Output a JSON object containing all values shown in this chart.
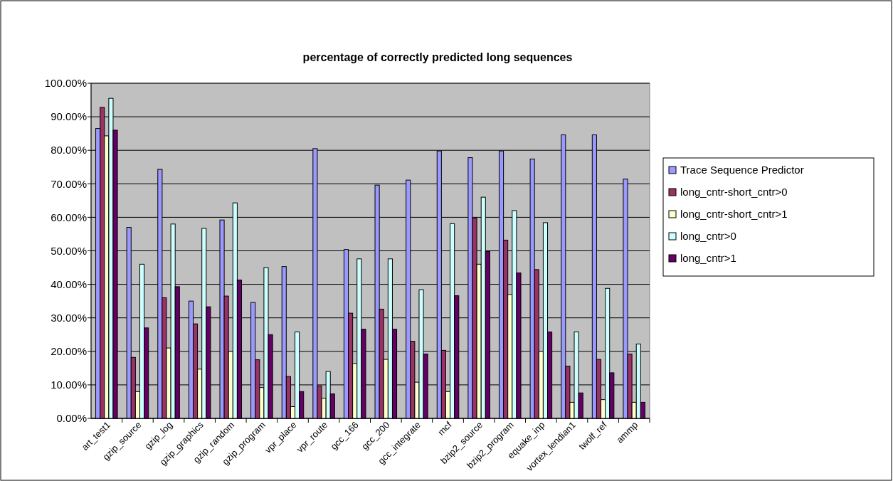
{
  "chart_data": {
    "type": "bar",
    "title": "percentage of correctly predicted long sequences",
    "categories": [
      "art_test1",
      "gzip_source",
      "gzip_log",
      "gzip_graphics",
      "gzip_random",
      "gzip_program",
      "vpr_place",
      "vpr_route",
      "gcc_166",
      "gcc_200",
      "gcc_integrate",
      "mcf",
      "bzip2_source",
      "bzip2_program",
      "equake_inp",
      "vortex_lendian1",
      "twolf_ref",
      "ammp"
    ],
    "series": [
      {
        "name": "Trace Sequence Predictor",
        "color": "#9999ff",
        "values": [
          86.5,
          57,
          74.3,
          35,
          59.2,
          34.6,
          45.3,
          80.5,
          50.4,
          69.6,
          71.1,
          79.8,
          77.8,
          79.8,
          77.4,
          84.6,
          84.6,
          71.4
        ]
      },
      {
        "name": "long_cntr-short_cntr>0",
        "color": "#993366",
        "values": [
          92.8,
          18.2,
          36,
          28.2,
          36.5,
          17.5,
          12.5,
          9.7,
          31.4,
          32.6,
          23,
          20.3,
          59.8,
          53.2,
          44.4,
          15.6,
          17.6,
          19.2
        ]
      },
      {
        "name": "long_cntr-short_cntr>1",
        "color": "#ffffcc",
        "values": [
          84.3,
          8,
          21,
          14.7,
          20,
          9.2,
          3.5,
          6,
          16.4,
          17.6,
          10.8,
          8,
          46,
          37,
          20,
          4.8,
          5.6,
          4.8
        ]
      },
      {
        "name": "long_cntr>0",
        "color": "#ccffff",
        "values": [
          95.5,
          46,
          58,
          56.7,
          64.3,
          45,
          25.8,
          14,
          47.6,
          47.6,
          38.4,
          58.1,
          66,
          62,
          58.4,
          25.8,
          38.8,
          22.2
        ]
      },
      {
        "name": "long_cntr>1",
        "color": "#660066",
        "values": [
          86,
          27,
          39.3,
          33.3,
          41.3,
          25,
          8,
          7.3,
          26.6,
          26.6,
          19.2,
          36.6,
          49.8,
          43.4,
          25.8,
          7.6,
          13.6,
          4.8
        ]
      }
    ],
    "ylim": [
      0,
      100
    ],
    "yticks": [
      {
        "value": 0,
        "label": "0.00%"
      },
      {
        "value": 10,
        "label": "10.00%"
      },
      {
        "value": 20,
        "label": "20.00%"
      },
      {
        "value": 30,
        "label": "30.00%"
      },
      {
        "value": 40,
        "label": "40.00%"
      },
      {
        "value": 50,
        "label": "50.00%"
      },
      {
        "value": 60,
        "label": "60.00%"
      },
      {
        "value": 70,
        "label": "70.00%"
      },
      {
        "value": 80,
        "label": "80.00%"
      },
      {
        "value": 90,
        "label": "90.00%"
      },
      {
        "value": 100,
        "label": "100.00%"
      }
    ],
    "grid": "y",
    "legend": "right"
  }
}
